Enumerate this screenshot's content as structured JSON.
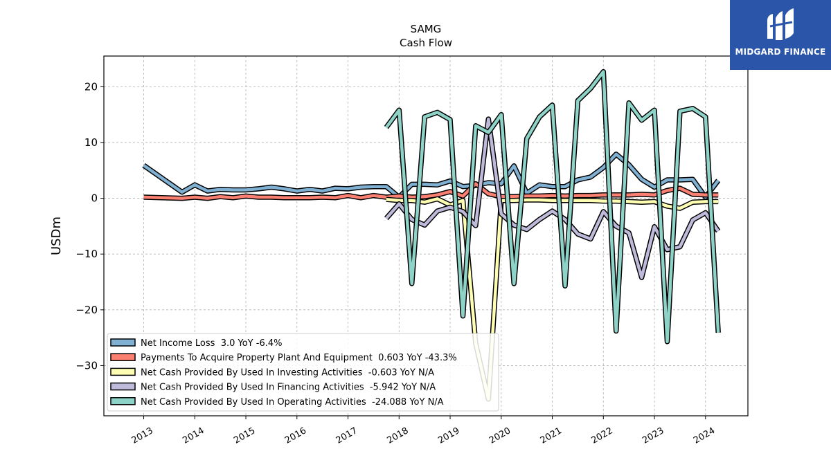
{
  "chart_data": {
    "type": "line",
    "title": "SAMG",
    "subtitle": "Cash Flow",
    "ylabel": "USDm",
    "xlabel": "",
    "ylim": [
      -39,
      25.5
    ],
    "xlim": [
      2012.22,
      2024.83
    ],
    "yticks": [
      20,
      10,
      0,
      -10,
      -20,
      -30
    ],
    "ytick_labels": [
      "20",
      "10",
      "0",
      "−10",
      "−20",
      "−30"
    ],
    "xticks": [
      2013,
      2014,
      2015,
      2016,
      2017,
      2018,
      2019,
      2020,
      2021,
      2022,
      2023,
      2024
    ],
    "xtick_labels": [
      "2013",
      "2014",
      "2015",
      "2016",
      "2017",
      "2018",
      "2019",
      "2020",
      "2021",
      "2022",
      "2023",
      "2024"
    ],
    "grid": true,
    "legend_position": "lower-left",
    "series": [
      {
        "name": "Net Income Loss  3.0 YoY -6.4%",
        "color": "#80b1d3",
        "x": [
          2013.0,
          2013.75,
          2014.0,
          2014.25,
          2014.5,
          2014.75,
          2015.0,
          2015.25,
          2015.5,
          2015.75,
          2016.0,
          2016.25,
          2016.5,
          2016.75,
          2017.0,
          2017.25,
          2017.5,
          2017.75,
          2018.0,
          2018.25,
          2018.5,
          2018.75,
          2019.0,
          2019.25,
          2019.5,
          2019.75,
          2020.0,
          2020.25,
          2020.5,
          2020.75,
          2021.0,
          2021.25,
          2021.5,
          2021.75,
          2022.0,
          2022.25,
          2022.5,
          2022.75,
          2023.0,
          2023.25,
          2023.5,
          2023.75,
          2024.0,
          2024.25
        ],
        "values": [
          5.9,
          1.1,
          2.4,
          1.3,
          1.6,
          1.5,
          1.5,
          1.7,
          2.0,
          1.7,
          1.3,
          1.6,
          1.3,
          1.8,
          1.7,
          2.0,
          2.1,
          2.1,
          0.2,
          2.5,
          2.5,
          2.4,
          3.1,
          2.1,
          2.3,
          2.8,
          2.6,
          5.8,
          0.9,
          2.4,
          2.1,
          2.1,
          3.3,
          3.8,
          5.5,
          7.9,
          6.0,
          3.4,
          2.0,
          3.3,
          3.3,
          3.4,
          0.2,
          3.2
        ]
      },
      {
        "name": "Payments To Acquire Property Plant And Equipment  0.603 YoY -43.3%",
        "color": "#fb8072",
        "x": [
          2013.0,
          2013.75,
          2014.0,
          2014.25,
          2014.5,
          2014.75,
          2015.0,
          2015.25,
          2015.5,
          2015.75,
          2016.0,
          2016.25,
          2016.5,
          2016.75,
          2017.0,
          2017.25,
          2017.5,
          2017.75,
          2018.0,
          2018.25,
          2018.5,
          2018.75,
          2019.0,
          2019.25,
          2019.5,
          2019.75,
          2020.0,
          2020.25,
          2020.5,
          2020.75,
          2021.0,
          2021.25,
          2021.5,
          2021.75,
          2022.0,
          2022.25,
          2022.5,
          2022.75,
          2023.0,
          2023.25,
          2023.5,
          2023.75,
          2024.0,
          2024.25
        ],
        "values": [
          0.2,
          0.0,
          0.2,
          0.0,
          0.3,
          0.1,
          0.4,
          0.2,
          0.2,
          0.1,
          0.1,
          0.1,
          0.2,
          0.1,
          0.5,
          0.1,
          0.5,
          0.2,
          0.4,
          0.2,
          0.3,
          0.6,
          1.2,
          0.4,
          2.6,
          0.8,
          0.3,
          0.3,
          0.4,
          0.4,
          0.5,
          0.4,
          0.5,
          0.5,
          0.6,
          0.6,
          0.6,
          0.7,
          0.6,
          1.4,
          1.8,
          0.7,
          0.6,
          0.6
        ]
      },
      {
        "name": "Net Cash Provided By Used In Investing Activities  -0.603 YoY N/A",
        "color": "#ffffb3",
        "x": [
          2017.75,
          2018.0,
          2018.25,
          2018.5,
          2018.75,
          2019.0,
          2019.25,
          2019.5,
          2019.75,
          2020.0,
          2020.25,
          2020.5,
          2020.75,
          2021.0,
          2021.25,
          2021.5,
          2021.75,
          2022.0,
          2022.25,
          2022.5,
          2022.75,
          2023.0,
          2023.25,
          2023.5,
          2023.75,
          2024.0,
          2024.25
        ],
        "values": [
          -0.2,
          -0.4,
          -0.4,
          -0.7,
          -0.1,
          -1.2,
          -0.4,
          -26.0,
          -36.0,
          -0.4,
          -0.4,
          -0.3,
          -0.3,
          -0.4,
          -0.4,
          -0.4,
          -0.4,
          -0.5,
          -0.5,
          -0.6,
          -0.7,
          -0.6,
          -1.4,
          -1.8,
          -0.7,
          -0.6,
          -0.6
        ]
      },
      {
        "name": "Net Cash Provided By Used In Financing Activities  -5.942 YoY N/A",
        "color": "#bebada",
        "x": [
          2017.75,
          2018.0,
          2018.25,
          2018.5,
          2018.75,
          2019.0,
          2019.25,
          2019.5,
          2019.75,
          2020.0,
          2020.25,
          2020.5,
          2020.75,
          2021.0,
          2021.25,
          2021.5,
          2021.75,
          2022.0,
          2022.25,
          2022.5,
          2022.75,
          2023.0,
          2023.25,
          2023.5,
          2023.75,
          2024.0,
          2024.25
        ],
        "values": [
          -3.6,
          -1.0,
          -3.8,
          -4.8,
          -2.3,
          -1.6,
          -2.4,
          -4.9,
          14.2,
          -2.8,
          -4.8,
          -5.6,
          -3.8,
          -2.3,
          -3.8,
          -6.4,
          -7.3,
          -2.4,
          -5.0,
          -6.2,
          -14.2,
          -5.1,
          -9.2,
          -8.7,
          -3.9,
          -2.6,
          -5.9
        ]
      },
      {
        "name": "Net Cash Provided By Used In Operating Activities  -24.088 YoY N/A",
        "color": "#8dd3c7",
        "x": [
          2017.75,
          2018.0,
          2018.25,
          2018.5,
          2018.75,
          2019.0,
          2019.25,
          2019.5,
          2019.75,
          2020.0,
          2020.25,
          2020.5,
          2020.75,
          2021.0,
          2021.25,
          2021.5,
          2021.75,
          2022.0,
          2022.25,
          2022.5,
          2022.75,
          2023.0,
          2023.25,
          2023.5,
          2023.75,
          2024.0,
          2024.25
        ],
        "values": [
          12.7,
          15.8,
          -15.3,
          14.6,
          15.4,
          14.1,
          -21.1,
          13.0,
          11.8,
          15.0,
          -15.3,
          10.7,
          14.6,
          16.7,
          -15.7,
          17.5,
          19.7,
          22.7,
          -23.8,
          17.1,
          14.0,
          15.8,
          -25.7,
          15.6,
          16.1,
          14.6,
          -24.1
        ]
      }
    ]
  },
  "logo": {
    "text": "MIDGARD FINANCE",
    "bg_color": "#2b55a9"
  }
}
